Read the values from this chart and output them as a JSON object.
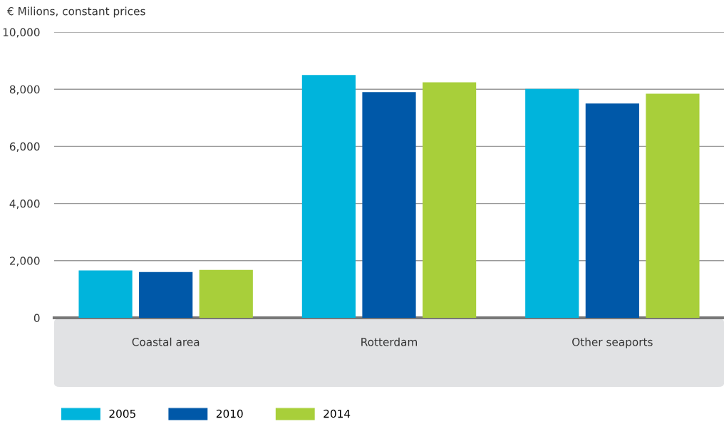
{
  "chart_data": {
    "type": "bar",
    "ylabel": "€ Milions, constant prices",
    "categories": [
      "Coastal area",
      "Rotterdam",
      "Other seaports"
    ],
    "series": [
      {
        "name": "2005",
        "color": "#00b4dc",
        "values": [
          1660,
          8500,
          8010
        ]
      },
      {
        "name": "2010",
        "color": "#0058a8",
        "values": [
          1600,
          7900,
          7500
        ]
      },
      {
        "name": "2014",
        "color": "#a8cf3a",
        "values": [
          1680,
          8240,
          7840
        ]
      }
    ],
    "ylim": [
      0,
      10000
    ],
    "yticks": [
      {
        "value": 0,
        "label": "0"
      },
      {
        "value": 2000,
        "label": "2,000"
      },
      {
        "value": 4000,
        "label": "4,000"
      },
      {
        "value": 6000,
        "label": "6,000"
      },
      {
        "value": 8000,
        "label": "8,000"
      },
      {
        "value": 10000,
        "label": "10,000"
      }
    ],
    "grid": "y",
    "legend": "bottom left"
  }
}
